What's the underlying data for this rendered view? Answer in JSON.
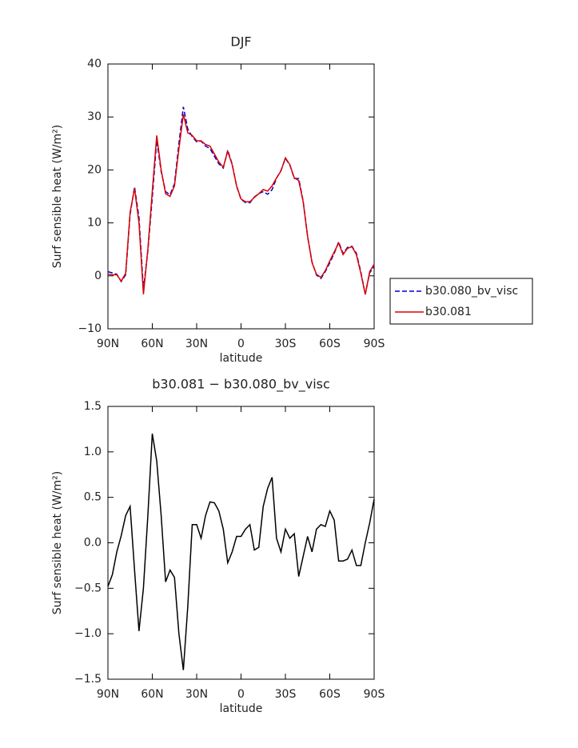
{
  "chart_data": [
    {
      "type": "line",
      "title": "DJF",
      "xlabel": "latitude",
      "ylabel": "Surf sensible heat (W/m²)",
      "x": [
        90,
        87,
        84,
        81,
        78,
        75,
        72,
        69,
        66,
        63,
        60,
        57,
        54,
        51,
        48,
        45,
        42,
        39,
        36,
        33,
        30,
        27,
        24,
        21,
        18,
        15,
        12,
        9,
        6,
        3,
        0,
        -3,
        -6,
        -9,
        -12,
        -15,
        -18,
        -21,
        -24,
        -27,
        -30,
        -33,
        -36,
        -39,
        -42,
        -45,
        -48,
        -51,
        -54,
        -57,
        -60,
        -63,
        -66,
        -69,
        -72,
        -75,
        -78,
        -81,
        -84,
        -87,
        -90
      ],
      "series": [
        {
          "name": "b30.080_bv_visc",
          "color": "#0000cc",
          "dash": true,
          "values": [
            0.78,
            0.55,
            0.3,
            -1.08,
            0.2,
            11.6,
            16.8,
            11,
            -2.5,
            4.7,
            14.8,
            25.6,
            19.7,
            15.9,
            15.3,
            17.4,
            25,
            31.9,
            27.7,
            26.3,
            25.3,
            25.45,
            24.5,
            24.05,
            22.56,
            21.15,
            20.35,
            23.72,
            21.1,
            16.93,
            14.43,
            13.85,
            13.8,
            14.88,
            15.55,
            15.9,
            15.4,
            16.28,
            18.45,
            19.9,
            22.15,
            20.95,
            18.4,
            18.37,
            14.15,
            7.43,
            2.6,
            0.15,
            -0.5,
            0.82,
            2.45,
            4.25,
            6.4,
            4.2,
            5.38,
            5.58,
            4.25,
            0.75,
            -3.5,
            0.58,
            1.72
          ]
        },
        {
          "name": "b30.081",
          "color": "#dd0000",
          "dash": false,
          "values": [
            0.3,
            0.2,
            0.2,
            -1.0,
            0.5,
            12,
            16.5,
            10,
            -3.5,
            5,
            16,
            26.5,
            20,
            15.5,
            15,
            17,
            24,
            30.5,
            27,
            26.5,
            25.5,
            25.5,
            24.8,
            24.5,
            23,
            21.5,
            20.5,
            23.5,
            21,
            17,
            14.5,
            14,
            14,
            14.8,
            15.5,
            16.3,
            16,
            17,
            18.5,
            19.8,
            22.3,
            21,
            18.5,
            18,
            14,
            7.5,
            2.5,
            0.3,
            -0.3,
            1,
            2.8,
            4.5,
            6.2,
            4,
            5.2,
            5.5,
            4,
            0.5,
            -3.5,
            0.8,
            2.2
          ]
        }
      ],
      "xlim": [
        90,
        -90
      ],
      "xticks": [
        {
          "value": 90,
          "label": "90N"
        },
        {
          "value": 60,
          "label": "60N"
        },
        {
          "value": 30,
          "label": "30N"
        },
        0,
        {
          "value": -30,
          "label": "30S"
        },
        {
          "value": -60,
          "label": "60S"
        },
        {
          "value": -90,
          "label": "90S"
        }
      ],
      "ylim": [
        -10,
        40
      ],
      "yticks": [
        {
          "value": -10,
          "label": "−10"
        },
        0,
        10,
        20,
        30,
        40
      ],
      "legend": "right"
    },
    {
      "type": "line",
      "title": "b30.081 − b30.080_bv_visc",
      "xlabel": "latitude",
      "ylabel": "Surf sensible heat (W/m²)",
      "x": [
        90,
        87,
        84,
        81,
        78,
        75,
        72,
        69,
        66,
        63,
        60,
        57,
        54,
        51,
        48,
        45,
        42,
        39,
        36,
        33,
        30,
        27,
        24,
        21,
        18,
        15,
        12,
        9,
        6,
        3,
        0,
        -3,
        -6,
        -9,
        -12,
        -15,
        -18,
        -21,
        -24,
        -27,
        -30,
        -33,
        -36,
        -39,
        -42,
        -45,
        -48,
        -51,
        -54,
        -57,
        -60,
        -63,
        -66,
        -69,
        -72,
        -75,
        -78,
        -81,
        -84,
        -87,
        -90
      ],
      "color": "#000000",
      "values": [
        -0.48,
        -0.35,
        -0.1,
        0.08,
        0.3,
        0.4,
        -0.3,
        -0.97,
        -0.5,
        0.3,
        1.2,
        0.9,
        0.3,
        -0.43,
        -0.3,
        -0.38,
        -1.0,
        -1.4,
        -0.7,
        0.2,
        0.2,
        0.05,
        0.3,
        0.45,
        0.44,
        0.35,
        0.15,
        -0.22,
        -0.1,
        0.07,
        0.07,
        0.15,
        0.2,
        -0.08,
        -0.05,
        0.4,
        0.6,
        0.72,
        0.05,
        -0.1,
        0.15,
        0.05,
        0.1,
        -0.37,
        -0.15,
        0.07,
        -0.1,
        0.15,
        0.2,
        0.18,
        0.35,
        0.25,
        -0.2,
        -0.2,
        -0.18,
        -0.08,
        -0.25,
        -0.25,
        0.0,
        0.22,
        0.48
      ],
      "xlim": [
        90,
        -90
      ],
      "xticks": [
        {
          "value": 90,
          "label": "90N"
        },
        {
          "value": 60,
          "label": "60N"
        },
        {
          "value": 30,
          "label": "30N"
        },
        0,
        {
          "value": -30,
          "label": "30S"
        },
        {
          "value": -60,
          "label": "60S"
        },
        {
          "value": -90,
          "label": "90S"
        }
      ],
      "ylim": [
        -1.5,
        1.5
      ],
      "yticks": [
        {
          "value": -1.5,
          "label": "−1.5"
        },
        {
          "value": -1,
          "label": "−1.0"
        },
        {
          "value": -0.5,
          "label": "−0.5"
        },
        {
          "value": 0,
          "label": "0.0"
        },
        0.5,
        {
          "value": 1,
          "label": "1.0"
        },
        1.5
      ]
    }
  ]
}
